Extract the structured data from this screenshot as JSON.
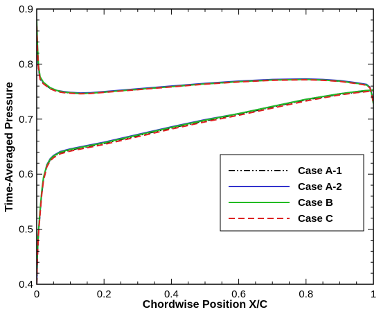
{
  "chart_data": {
    "type": "line",
    "title": "",
    "xlabel": "Chordwise Position X/C",
    "ylabel": "Time-Averaged Pressure",
    "xlim": [
      0,
      1
    ],
    "ylim": [
      0.4,
      0.9
    ],
    "xticks": [
      0,
      0.2,
      0.4,
      0.6,
      0.8,
      1
    ],
    "xtick_labels": [
      "0",
      "0.2",
      "0.4",
      "0.6",
      "0.8",
      "1"
    ],
    "yticks": [
      0.4,
      0.5,
      0.6,
      0.7,
      0.8,
      0.9
    ],
    "ytick_labels": [
      "0.4",
      "0.5",
      "0.6",
      "0.7",
      "0.8",
      "0.9"
    ],
    "grid": false,
    "legend_position": "center-right",
    "series": [
      {
        "name": "Case A-1",
        "color": "#000000",
        "dash": "dash-dot-dot",
        "upper": {
          "x": [
            0,
            0.002,
            0.005,
            0.01,
            0.02,
            0.04,
            0.06,
            0.08,
            0.1,
            0.13,
            0.16,
            0.2,
            0.3,
            0.4,
            0.5,
            0.6,
            0.7,
            0.8,
            0.85,
            0.9,
            0.95,
            0.98,
            0.99,
            0.995,
            1.0
          ],
          "y": [
            0.87,
            0.83,
            0.795,
            0.773,
            0.765,
            0.756,
            0.751,
            0.749,
            0.7475,
            0.7465,
            0.747,
            0.749,
            0.754,
            0.759,
            0.764,
            0.768,
            0.771,
            0.772,
            0.771,
            0.769,
            0.765,
            0.762,
            0.757,
            0.745,
            0.73
          ]
        },
        "lower": {
          "x": [
            0,
            0.002,
            0.005,
            0.01,
            0.015,
            0.02,
            0.03,
            0.04,
            0.05,
            0.07,
            0.1,
            0.15,
            0.2,
            0.3,
            0.4,
            0.5,
            0.6,
            0.7,
            0.8,
            0.9,
            0.95,
            0.98,
            1.0
          ],
          "y": [
            0.4,
            0.45,
            0.49,
            0.53,
            0.565,
            0.59,
            0.615,
            0.626,
            0.632,
            0.639,
            0.644,
            0.65,
            0.656,
            0.67,
            0.684,
            0.697,
            0.709,
            0.722,
            0.735,
            0.745,
            0.749,
            0.751,
            0.752
          ]
        }
      },
      {
        "name": "Case A-2",
        "color": "#3333cc",
        "dash": "solid",
        "upper": {
          "x": [
            0,
            0.002,
            0.005,
            0.01,
            0.02,
            0.04,
            0.06,
            0.08,
            0.1,
            0.13,
            0.16,
            0.2,
            0.3,
            0.4,
            0.5,
            0.6,
            0.7,
            0.8,
            0.85,
            0.9,
            0.95,
            0.98,
            0.99,
            0.995,
            1.0
          ],
          "y": [
            0.87,
            0.83,
            0.797,
            0.775,
            0.766,
            0.757,
            0.752,
            0.75,
            0.7485,
            0.7475,
            0.748,
            0.75,
            0.755,
            0.76,
            0.765,
            0.769,
            0.772,
            0.773,
            0.772,
            0.77,
            0.766,
            0.763,
            0.758,
            0.746,
            0.73
          ]
        },
        "lower": {
          "x": [
            0,
            0.002,
            0.005,
            0.01,
            0.015,
            0.02,
            0.03,
            0.04,
            0.05,
            0.07,
            0.1,
            0.15,
            0.2,
            0.3,
            0.4,
            0.5,
            0.6,
            0.7,
            0.8,
            0.9,
            0.95,
            0.98,
            1.0
          ],
          "y": [
            0.4,
            0.452,
            0.492,
            0.532,
            0.567,
            0.592,
            0.617,
            0.628,
            0.634,
            0.641,
            0.646,
            0.652,
            0.658,
            0.672,
            0.686,
            0.699,
            0.71,
            0.723,
            0.736,
            0.746,
            0.75,
            0.752,
            0.752
          ]
        }
      },
      {
        "name": "Case B",
        "color": "#22bb22",
        "dash": "solid",
        "upper": {
          "x": [
            0,
            0.002,
            0.005,
            0.01,
            0.02,
            0.04,
            0.06,
            0.08,
            0.1,
            0.13,
            0.16,
            0.2,
            0.3,
            0.4,
            0.5,
            0.6,
            0.7,
            0.8,
            0.85,
            0.9,
            0.95,
            0.98,
            0.99,
            0.995,
            1.0
          ],
          "y": [
            0.88,
            0.84,
            0.8,
            0.777,
            0.767,
            0.757,
            0.752,
            0.749,
            0.748,
            0.7465,
            0.747,
            0.749,
            0.754,
            0.759,
            0.764,
            0.768,
            0.771,
            0.772,
            0.771,
            0.769,
            0.765,
            0.762,
            0.757,
            0.745,
            0.728
          ]
        },
        "lower": {
          "x": [
            0,
            0.002,
            0.005,
            0.01,
            0.015,
            0.02,
            0.03,
            0.04,
            0.05,
            0.07,
            0.1,
            0.15,
            0.2,
            0.3,
            0.4,
            0.5,
            0.6,
            0.7,
            0.8,
            0.9,
            0.95,
            0.98,
            1.0
          ],
          "y": [
            0.42,
            0.455,
            0.495,
            0.535,
            0.57,
            0.594,
            0.616,
            0.627,
            0.633,
            0.64,
            0.645,
            0.651,
            0.657,
            0.671,
            0.685,
            0.698,
            0.71,
            0.723,
            0.736,
            0.746,
            0.75,
            0.752,
            0.753
          ]
        }
      },
      {
        "name": "Case C",
        "color": "#dd2222",
        "dash": "dashed",
        "upper": {
          "x": [
            0,
            0.002,
            0.005,
            0.01,
            0.02,
            0.04,
            0.06,
            0.08,
            0.1,
            0.13,
            0.16,
            0.2,
            0.3,
            0.4,
            0.5,
            0.6,
            0.7,
            0.8,
            0.85,
            0.9,
            0.95,
            0.98,
            0.99,
            0.995,
            1.0
          ],
          "y": [
            0.87,
            0.83,
            0.795,
            0.772,
            0.764,
            0.755,
            0.75,
            0.748,
            0.747,
            0.746,
            0.7465,
            0.7485,
            0.7535,
            0.7585,
            0.7635,
            0.7675,
            0.7705,
            0.7715,
            0.7705,
            0.7685,
            0.7645,
            0.7615,
            0.7565,
            0.7445,
            0.73
          ]
        },
        "lower": {
          "x": [
            0,
            0.002,
            0.005,
            0.01,
            0.015,
            0.02,
            0.03,
            0.04,
            0.05,
            0.07,
            0.1,
            0.15,
            0.2,
            0.3,
            0.4,
            0.5,
            0.6,
            0.7,
            0.8,
            0.9,
            0.95,
            0.98,
            1.0
          ],
          "y": [
            0.4,
            0.448,
            0.488,
            0.528,
            0.563,
            0.588,
            0.613,
            0.624,
            0.63,
            0.637,
            0.642,
            0.648,
            0.654,
            0.668,
            0.682,
            0.695,
            0.707,
            0.72,
            0.733,
            0.744,
            0.748,
            0.75,
            0.751
          ]
        }
      }
    ]
  }
}
